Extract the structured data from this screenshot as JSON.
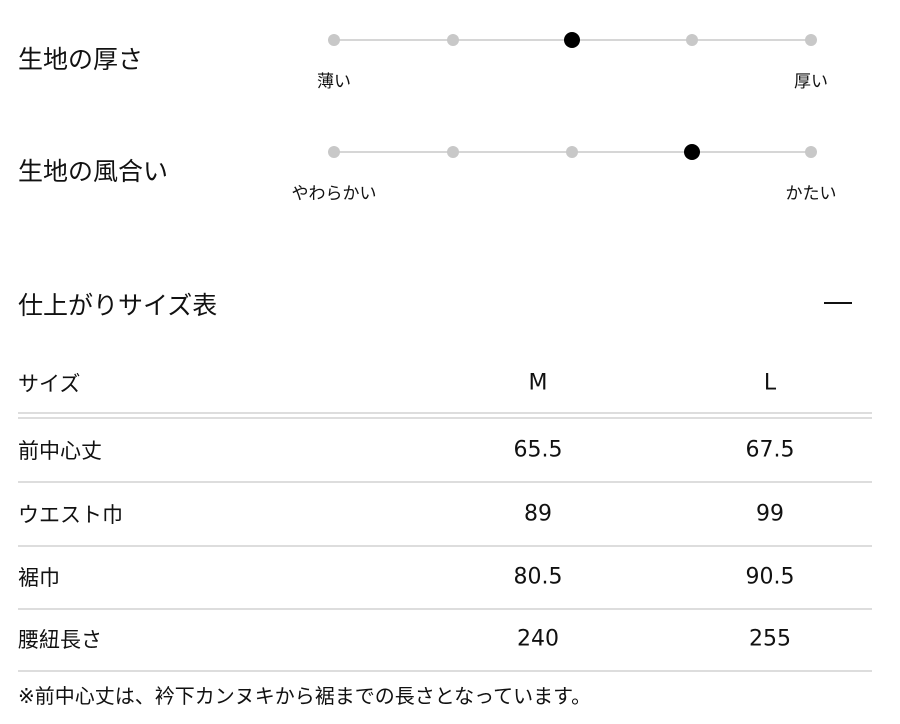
{
  "scales": [
    {
      "title": "生地の厚さ",
      "left_label": "薄い",
      "right_label": "厚い",
      "steps": 5,
      "selected": 3
    },
    {
      "title": "生地の風合い",
      "left_label": "やわらかい",
      "right_label": "かたい",
      "steps": 5,
      "selected": 4
    }
  ],
  "size_table": {
    "title": "仕上がりサイズ表",
    "collapse_icon": "minus-icon",
    "headers": [
      "サイズ",
      "M",
      "L"
    ],
    "rows": [
      {
        "label": "前中心丈",
        "values": [
          "65.5",
          "67.5"
        ]
      },
      {
        "label": "ウエスト巾",
        "values": [
          "89",
          "99"
        ]
      },
      {
        "label": "裾巾",
        "values": [
          "80.5",
          "90.5"
        ]
      },
      {
        "label": "腰紐長さ",
        "values": [
          "240",
          "255"
        ]
      }
    ],
    "note": "※前中心丈は、衿下カンヌキから裾までの長さとなっています。"
  }
}
